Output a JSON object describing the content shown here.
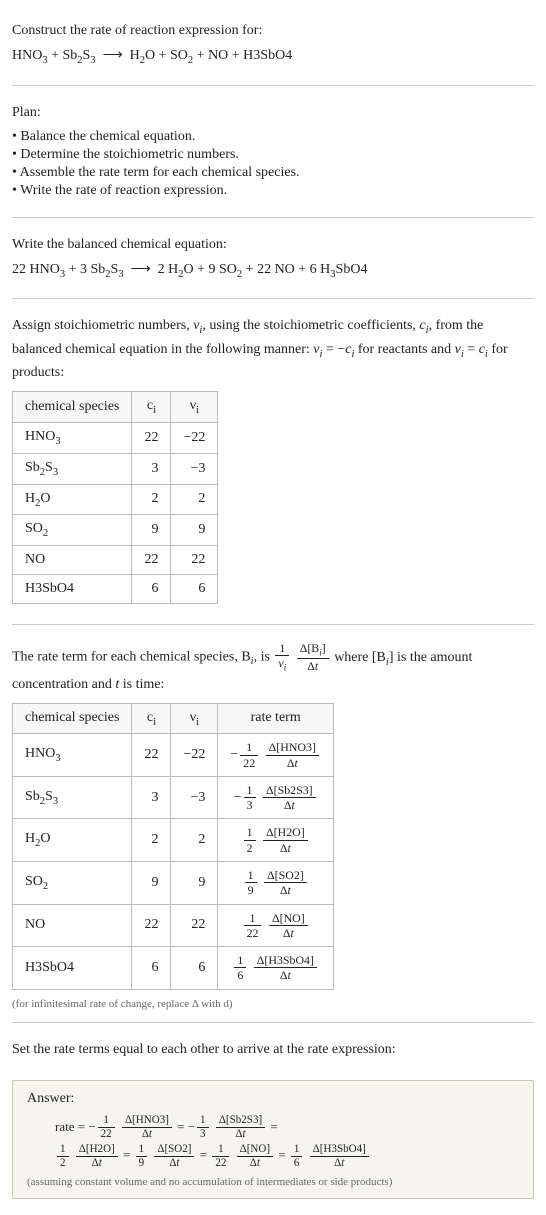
{
  "header": {
    "prompt": "Construct the rate of reaction expression for:",
    "equation_html": "HNO<sub>3</sub> + Sb<sub>2</sub>S<sub>3</sub> &nbsp;⟶&nbsp; H<sub>2</sub>O + SO<sub>2</sub> + NO + H3SbO4"
  },
  "plan": {
    "title": "Plan:",
    "items": [
      "Balance the chemical equation.",
      "Determine the stoichiometric numbers.",
      "Assemble the rate term for each chemical species.",
      "Write the rate of reaction expression."
    ]
  },
  "balanced": {
    "title": "Write the balanced chemical equation:",
    "equation_html": "22 HNO<sub>3</sub> + 3 Sb<sub>2</sub>S<sub>3</sub> &nbsp;⟶&nbsp; 2 H<sub>2</sub>O + 9 SO<sub>2</sub> + 22 NO + 6 H<sub>3</sub>SbO4"
  },
  "stoich_intro_html": "Assign stoichiometric numbers, <span class='ital'>ν<sub>i</sub></span>, using the stoichiometric coefficients, <span class='ital'>c<sub>i</sub></span>, from the balanced chemical equation in the following manner: <span class='ital'>ν<sub>i</sub></span> = −<span class='ital'>c<sub>i</sub></span> for reactants and <span class='ital'>ν<sub>i</sub></span> = <span class='ital'>c<sub>i</sub></span> for products:",
  "stoich_table": {
    "headers": [
      "chemical species",
      "c<sub>i</sub>",
      "ν<sub>i</sub>"
    ],
    "rows": [
      {
        "species_html": "HNO<sub>3</sub>",
        "c": "22",
        "nu": "−22"
      },
      {
        "species_html": "Sb<sub>2</sub>S<sub>3</sub>",
        "c": "3",
        "nu": "−3"
      },
      {
        "species_html": "H<sub>2</sub>O",
        "c": "2",
        "nu": "2"
      },
      {
        "species_html": "SO<sub>2</sub>",
        "c": "9",
        "nu": "9"
      },
      {
        "species_html": "NO",
        "c": "22",
        "nu": "22"
      },
      {
        "species_html": "H3SbO4",
        "c": "6",
        "nu": "6"
      }
    ]
  },
  "rate_intro_pre": "The rate term for each chemical species, B",
  "rate_intro_mid": ", is ",
  "rate_intro_post_html": " where [B<sub><span class='ital'>i</span></sub>] is the amount concentration and <span class='ital'>t</span> is time:",
  "rate_table": {
    "headers": [
      "chemical species",
      "c<sub>i</sub>",
      "ν<sub>i</sub>",
      "rate term"
    ],
    "rows": [
      {
        "species_html": "HNO<sub>3</sub>",
        "c": "22",
        "nu": "−22",
        "sign": "−",
        "coef_num": "1",
        "coef_den": "22",
        "conc": "Δ[HNO3]"
      },
      {
        "species_html": "Sb<sub>2</sub>S<sub>3</sub>",
        "c": "3",
        "nu": "−3",
        "sign": "−",
        "coef_num": "1",
        "coef_den": "3",
        "conc": "Δ[Sb2S3]"
      },
      {
        "species_html": "H<sub>2</sub>O",
        "c": "2",
        "nu": "2",
        "sign": "",
        "coef_num": "1",
        "coef_den": "2",
        "conc": "Δ[H2O]"
      },
      {
        "species_html": "SO<sub>2</sub>",
        "c": "9",
        "nu": "9",
        "sign": "",
        "coef_num": "1",
        "coef_den": "9",
        "conc": "Δ[SO2]"
      },
      {
        "species_html": "NO",
        "c": "22",
        "nu": "22",
        "sign": "",
        "coef_num": "1",
        "coef_den": "22",
        "conc": "Δ[NO]"
      },
      {
        "species_html": "H3SbO4",
        "c": "6",
        "nu": "6",
        "sign": "",
        "coef_num": "1",
        "coef_den": "6",
        "conc": "Δ[H3SbO4]"
      }
    ],
    "note": "(for infinitesimal rate of change, replace Δ with d)"
  },
  "set_equal": "Set the rate terms equal to each other to arrive at the rate expression:",
  "answer": {
    "label": "Answer:",
    "terms": [
      {
        "prefix": "rate = −",
        "coef_num": "1",
        "coef_den": "22",
        "conc": "Δ[HNO3]",
        "suffix": " = −"
      },
      {
        "prefix": "",
        "coef_num": "1",
        "coef_den": "3",
        "conc": "Δ[Sb2S3]",
        "suffix": " ="
      },
      {
        "prefix": "",
        "coef_num": "1",
        "coef_den": "2",
        "conc": "Δ[H2O]",
        "suffix": " = "
      },
      {
        "prefix": "",
        "coef_num": "1",
        "coef_den": "9",
        "conc": "Δ[SO2]",
        "suffix": " = "
      },
      {
        "prefix": "",
        "coef_num": "1",
        "coef_den": "22",
        "conc": "Δ[NO]",
        "suffix": " = "
      },
      {
        "prefix": "",
        "coef_num": "1",
        "coef_den": "6",
        "conc": "Δ[H3SbO4]",
        "suffix": ""
      }
    ],
    "disclaimer": "(assuming constant volume and no accumulation of intermediates or side products)"
  },
  "style": {
    "body_width": 546,
    "font_family": "Georgia, 'Times New Roman', serif",
    "font_size_pt": 14,
    "text_color": "#222222",
    "border_color": "#bbbbbb",
    "hr_color": "#cccccc",
    "answer_bg": "#f5f5ed",
    "answer_border": "#c8c8b8",
    "note_color": "#666666",
    "table_header_bg": "#f7f7f7"
  }
}
